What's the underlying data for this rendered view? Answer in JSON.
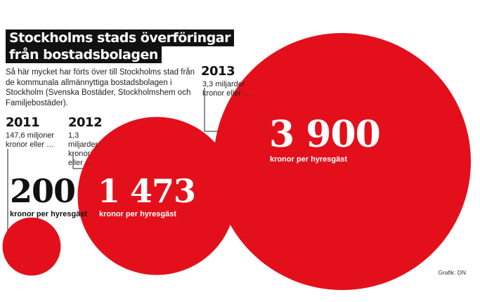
{
  "title": {
    "line1": "Stockholms stads överföringar",
    "line2": "från bostadsbolagen"
  },
  "intro": "Så här mycket har förts över till Stockholms stad från de kommunala allmännyttiga bostadsbolagen i Stockholm (Svenska Bostäder, Stockholmshem och Familjebostäder).",
  "credit": "Grafik: DN",
  "colors": {
    "circle": "#e3101c",
    "connector": "#222222",
    "value_on_circle": "#ffffff",
    "value_off_circle": "#111111"
  },
  "chart_data": {
    "type": "bubble",
    "unit_label": "kronor per hyresgäst",
    "series": [
      {
        "year": "2011",
        "total": "147,6 miljoner kronor eller …",
        "value": 200,
        "display": "200"
      },
      {
        "year": "2012",
        "total": "1,3 miljarder kronor eller …",
        "value": 1473,
        "display": "1 473"
      },
      {
        "year": "2013",
        "total": "3,3 miljarder kronor eller …",
        "value": 3900,
        "display": "3 900"
      }
    ]
  }
}
